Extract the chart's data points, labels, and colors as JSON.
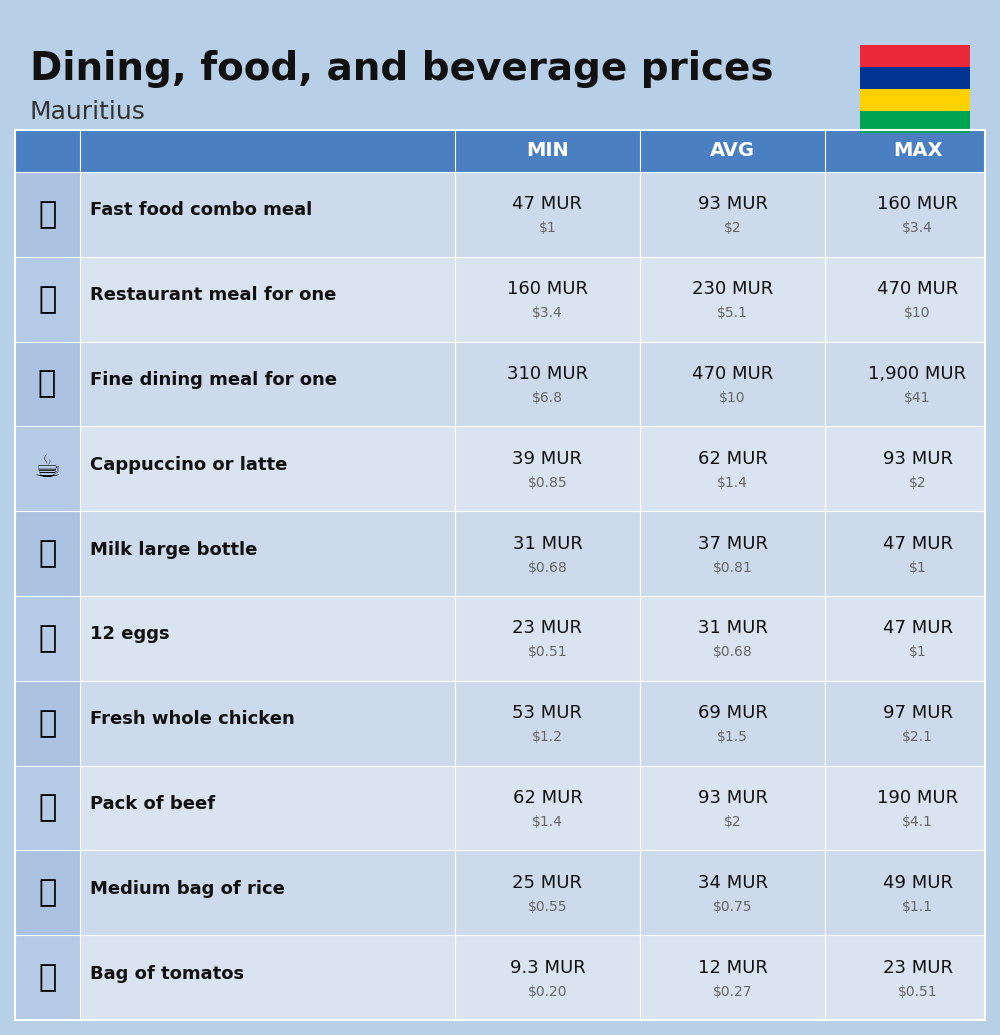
{
  "title": "Dining, food, and beverage prices",
  "subtitle": "Mauritius",
  "bg_color": "#b8cfe8",
  "header_bg": "#4a7fc1",
  "header_text_color": "#ffffff",
  "row_bg_odd": "#ccdaec",
  "row_bg_even": "#dae4f0",
  "col_headers": [
    "MIN",
    "AVG",
    "MAX"
  ],
  "items": [
    {
      "name": "Fast food combo meal",
      "emoji": "🍔",
      "min_mur": "47 MUR",
      "min_usd": "$1",
      "avg_mur": "93 MUR",
      "avg_usd": "$2",
      "max_mur": "160 MUR",
      "max_usd": "$3.4"
    },
    {
      "name": "Restaurant meal for one",
      "emoji": "🍳",
      "min_mur": "160 MUR",
      "min_usd": "$3.4",
      "avg_mur": "230 MUR",
      "avg_usd": "$5.1",
      "max_mur": "470 MUR",
      "max_usd": "$10"
    },
    {
      "name": "Fine dining meal for one",
      "emoji": "🍽",
      "min_mur": "310 MUR",
      "min_usd": "$6.8",
      "avg_mur": "470 MUR",
      "avg_usd": "$10",
      "max_mur": "1,900 MUR",
      "max_usd": "$41"
    },
    {
      "name": "Cappuccino or latte",
      "emoji": "☕",
      "min_mur": "39 MUR",
      "min_usd": "$0.85",
      "avg_mur": "62 MUR",
      "avg_usd": "$1.4",
      "max_mur": "93 MUR",
      "max_usd": "$2"
    },
    {
      "name": "Milk large bottle",
      "emoji": "🥛",
      "min_mur": "31 MUR",
      "min_usd": "$0.68",
      "avg_mur": "37 MUR",
      "avg_usd": "$0.81",
      "max_mur": "47 MUR",
      "max_usd": "$1"
    },
    {
      "name": "12 eggs",
      "emoji": "🥚",
      "min_mur": "23 MUR",
      "min_usd": "$0.51",
      "avg_mur": "31 MUR",
      "avg_usd": "$0.68",
      "max_mur": "47 MUR",
      "max_usd": "$1"
    },
    {
      "name": "Fresh whole chicken",
      "emoji": "🍗",
      "min_mur": "53 MUR",
      "min_usd": "$1.2",
      "avg_mur": "69 MUR",
      "avg_usd": "$1.5",
      "max_mur": "97 MUR",
      "max_usd": "$2.1"
    },
    {
      "name": "Pack of beef",
      "emoji": "🥩",
      "min_mur": "62 MUR",
      "min_usd": "$1.4",
      "avg_mur": "93 MUR",
      "avg_usd": "$2",
      "max_mur": "190 MUR",
      "max_usd": "$4.1"
    },
    {
      "name": "Medium bag of rice",
      "emoji": "🍚",
      "min_mur": "25 MUR",
      "min_usd": "$0.55",
      "avg_mur": "34 MUR",
      "avg_usd": "$0.75",
      "max_mur": "49 MUR",
      "max_usd": "$1.1"
    },
    {
      "name": "Bag of tomatos",
      "emoji": "🍅",
      "min_mur": "9.3 MUR",
      "min_usd": "$0.20",
      "avg_mur": "12 MUR",
      "avg_usd": "$0.27",
      "max_mur": "23 MUR",
      "max_usd": "$0.51"
    }
  ],
  "flag_colors": [
    "#EA2839",
    "#003594",
    "#FFD100",
    "#00A551"
  ],
  "icon_emojis": [
    "🍔",
    "🍳",
    "🍽️",
    "☕️",
    "🥛",
    "🥚",
    "🍗",
    "🥩",
    "🍚",
    "🍅"
  ]
}
